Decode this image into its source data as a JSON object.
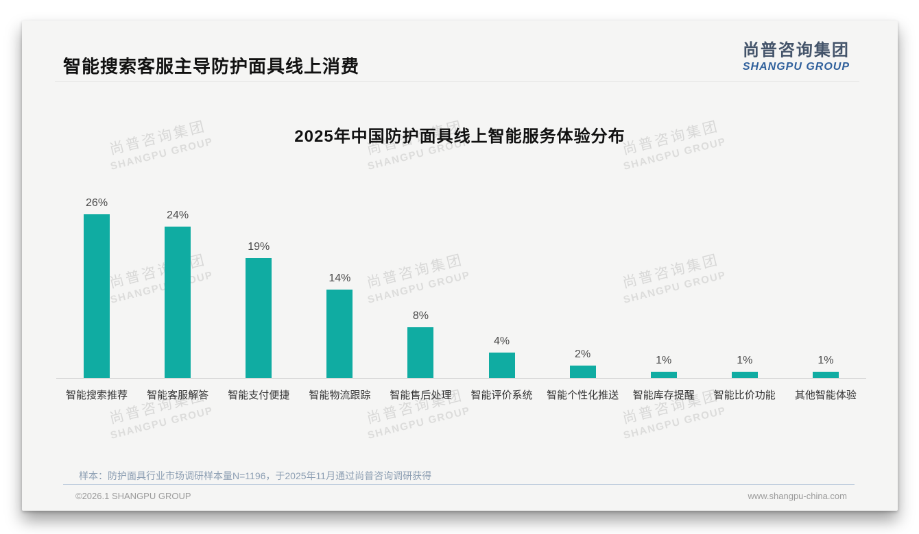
{
  "header": {
    "title": "智能搜索客服主导防护面具线上消费"
  },
  "logo": {
    "zh": "尚普咨询集团",
    "en": "SHANGPU GROUP",
    "zh_color": "#44546a",
    "en_color": "#2e5f9b"
  },
  "watermark": {
    "line1": "尚普咨询集团",
    "line2": "SHANGPU GROUP"
  },
  "chart_data": {
    "type": "bar",
    "title": "2025年中国防护面具线上智能服务体验分布",
    "categories": [
      "智能搜索推荐",
      "智能客服解答",
      "智能支付便捷",
      "智能物流跟踪",
      "智能售后处理",
      "智能评价系统",
      "智能个性化推送",
      "智能库存提醒",
      "智能比价功能",
      "其他智能体验"
    ],
    "values": [
      26,
      24,
      19,
      14,
      8,
      4,
      2,
      1,
      1,
      1
    ],
    "value_suffix": "%",
    "bar_color": "#10aca2",
    "xlabel": "",
    "ylabel": "",
    "ylim": [
      0,
      30
    ],
    "grid": false,
    "data_labels": true,
    "legend": "none"
  },
  "note": {
    "text": "样本：防护面具行业市场调研样本量N=1196，于2025年11月通过尚普咨询调研获得"
  },
  "footer": {
    "left": "©2026.1 SHANGPU GROUP",
    "right": "www.shangpu-china.com"
  }
}
